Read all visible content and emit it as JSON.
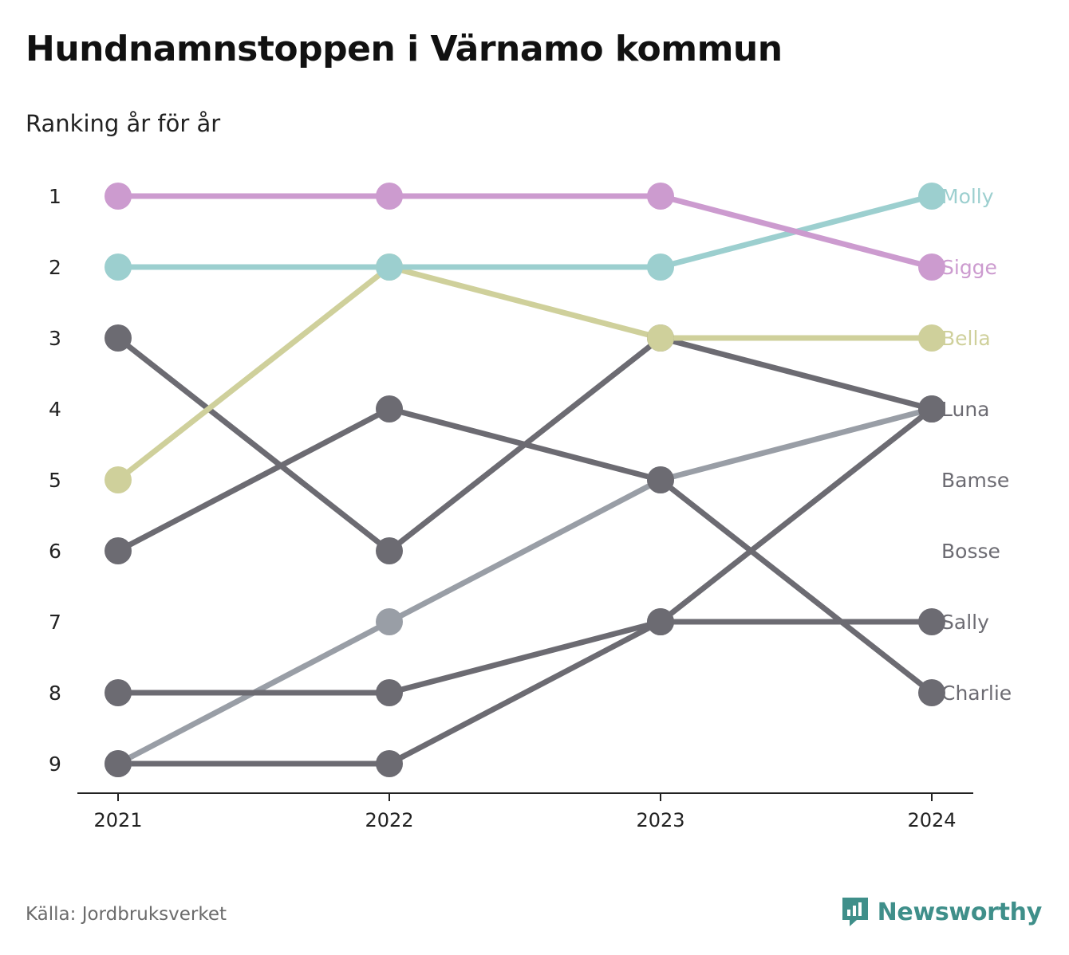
{
  "title": "Hundnamnstoppen i Värnamo kommun",
  "subtitle": "Ranking år för år",
  "source": "Källa: Jordbruksverket",
  "brand": {
    "name": "Newsworthy",
    "icon": "chart-bubble-icon",
    "color": "#3f8f8a"
  },
  "chart_data": {
    "type": "line",
    "subtype": "bump",
    "x": [
      "2021",
      "2022",
      "2023",
      "2024"
    ],
    "y_ticks": [
      1,
      2,
      3,
      4,
      5,
      6,
      7,
      8,
      9
    ],
    "ylim": [
      1,
      9
    ],
    "y_inverted": true,
    "grid": false,
    "legend": "end-labels",
    "labels": [
      "Molly",
      "Sigge",
      "Bella",
      "Luna",
      "Bamse",
      "Bosse",
      "Sally",
      "Charlie"
    ],
    "series": [
      {
        "color": "#999ea6",
        "values": [
          9,
          7,
          5,
          4
        ]
      },
      {
        "color": "#6c6b72",
        "values": [
          6,
          4,
          5,
          8
        ]
      },
      {
        "color": "#6c6b72",
        "values": [
          9,
          9,
          7,
          4
        ]
      },
      {
        "color": "#6c6b72",
        "values": [
          8,
          8,
          7,
          7
        ]
      },
      {
        "color": "#6c6b72",
        "values": [
          3,
          6,
          3,
          4
        ]
      },
      {
        "color": "#cfd09b",
        "values": [
          5,
          2,
          3,
          3
        ]
      },
      {
        "color": "#9ccfcf",
        "values": [
          2,
          2,
          2,
          1
        ]
      },
      {
        "color": "#cc9bcf",
        "values": [
          1,
          1,
          1,
          2
        ]
      }
    ],
    "label_colors": [
      "#9ccfcf",
      "#cc9bcf",
      "#cfd09b",
      "#6c6b72",
      "#6c6b72",
      "#6c6b72",
      "#6c6b72",
      "#6c6b72"
    ]
  }
}
